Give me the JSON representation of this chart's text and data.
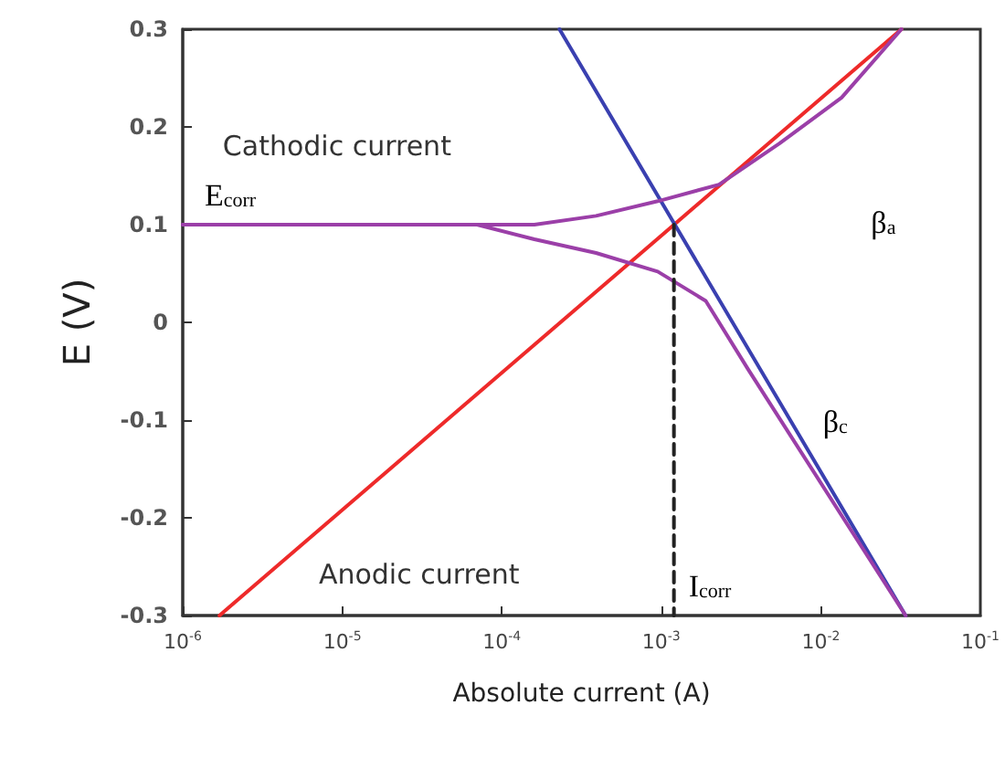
{
  "chart_data": {
    "type": "line",
    "xlabel": "Absolute current (A)",
    "ylabel": "E (V)",
    "log": "x",
    "grid": false,
    "marker": "none",
    "line_style": "solid",
    "xlim": [
      1e-06,
      0.1
    ],
    "ylim": [
      -0.3,
      0.3
    ],
    "xticks": [
      {
        "value": 1e-06,
        "label": "10$^{-6}$"
      },
      {
        "value": 1e-05,
        "label": "10$^{-5}$"
      },
      {
        "value": 0.0001,
        "label": "10$^{-4}$"
      },
      {
        "value": 0.001,
        "label": "10$^{-3}$"
      },
      {
        "value": 0.01,
        "label": "10$^{-2}$"
      },
      {
        "value": 0.1,
        "label": "10$^{-1}$"
      }
    ],
    "yticks": [
      -0.3,
      -0.2,
      -0.1,
      0,
      0.1,
      0.2,
      0.3
    ],
    "series": [
      {
        "color": "#ee2a2a",
        "x": [
          1.7e-06,
          0.032
        ],
        "values": [
          -0.3,
          0.3
        ]
      },
      {
        "color": "#3a40b0",
        "x": [
          0.00023,
          0.034
        ],
        "values": [
          0.3,
          -0.3
        ]
      },
      {
        "color": "#9b3fa8",
        "x": [
          1e-06,
          7e-05,
          0.00016,
          0.00039,
          0.00095,
          0.0023,
          0.0055,
          0.0135,
          0.032
        ],
        "values": [
          0.1,
          0.1,
          0.1,
          0.109,
          0.124,
          0.141,
          0.183,
          0.23,
          0.3
        ]
      },
      {
        "color": "#9b3fa8",
        "x": [
          1e-06,
          7e-05,
          0.00016,
          0.00039,
          0.00095,
          0.0019,
          0.0035,
          0.034
        ],
        "values": [
          0.1,
          0.1,
          0.085,
          0.071,
          0.052,
          0.022,
          -0.048,
          -0.3
        ]
      },
      {
        "color": "#222222",
        "line_style": "dashed",
        "x": [
          0.0012,
          0.0012
        ],
        "values": [
          0.1,
          -0.3
        ]
      }
    ],
    "annotations": [
      "Cathodic current",
      "Anodic current",
      {
        "text": "E$_{corr}$",
        "x": 1e-06,
        "y": 0.1
      },
      "β$_{a}$",
      "β$_{c}$",
      {
        "text": "I$_{corr}$",
        "x": 0.0012,
        "y": -0.3
      }
    ]
  }
}
